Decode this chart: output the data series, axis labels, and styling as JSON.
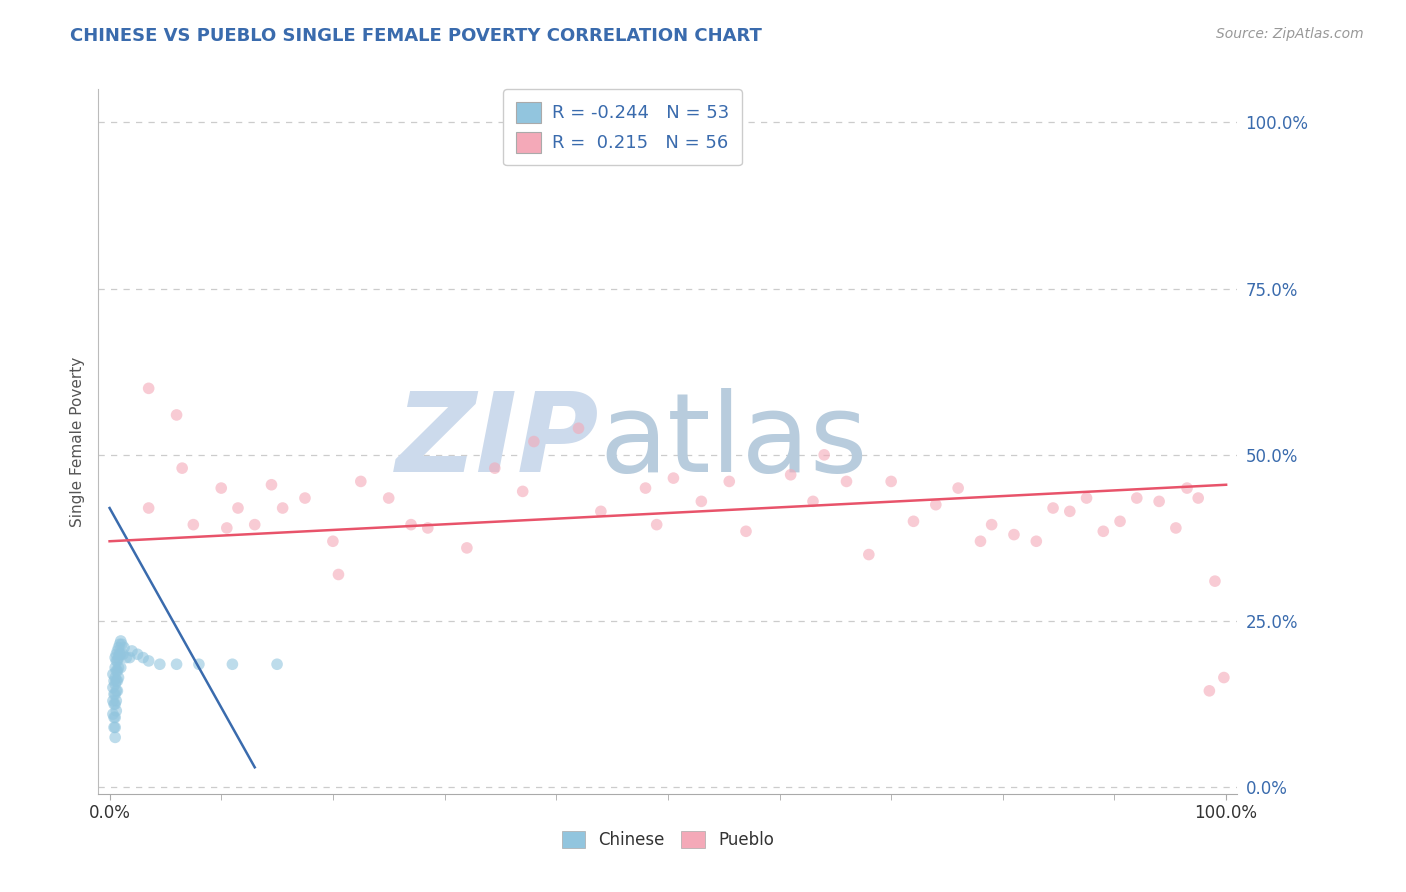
{
  "title": "CHINESE VS PUEBLO SINGLE FEMALE POVERTY CORRELATION CHART",
  "source": "Source: ZipAtlas.com",
  "ylabel": "Single Female Poverty",
  "ytick_labels": [
    "0.0%",
    "25.0%",
    "50.0%",
    "75.0%",
    "100.0%"
  ],
  "ytick_values": [
    0,
    0.25,
    0.5,
    0.75,
    1.0
  ],
  "xtick_labels": [
    "0.0%",
    "100.0%"
  ],
  "xtick_values": [
    0.0,
    1.0
  ],
  "xlim": [
    -0.01,
    1.01
  ],
  "ylim": [
    -0.01,
    1.05
  ],
  "blue_color": "#92C5DE",
  "pink_color": "#F4A9B8",
  "blue_fill_color": "#ADD8E6",
  "pink_fill_color": "#FFB6C1",
  "blue_line_color": "#3A6BAD",
  "pink_line_color": "#E8536A",
  "title_color": "#3A6BAD",
  "source_color": "#999999",
  "grid_color": "#CCCCCC",
  "watermark_color_zip": "#BBCCDD",
  "watermark_color_atlas": "#AABBCC",
  "r1_text": "R = -0.244",
  "n1_text": "N = 53",
  "r2_text": "R =  0.215",
  "n2_text": "N = 56",
  "chinese_x": [
    0.003,
    0.003,
    0.003,
    0.003,
    0.004,
    0.004,
    0.004,
    0.004,
    0.004,
    0.005,
    0.005,
    0.005,
    0.005,
    0.005,
    0.005,
    0.005,
    0.005,
    0.005,
    0.006,
    0.006,
    0.006,
    0.006,
    0.006,
    0.006,
    0.006,
    0.007,
    0.007,
    0.007,
    0.007,
    0.007,
    0.008,
    0.008,
    0.008,
    0.008,
    0.009,
    0.009,
    0.01,
    0.01,
    0.01,
    0.011,
    0.012,
    0.013,
    0.015,
    0.018,
    0.02,
    0.025,
    0.03,
    0.035,
    0.045,
    0.06,
    0.08,
    0.11,
    0.15
  ],
  "chinese_y": [
    0.17,
    0.15,
    0.13,
    0.11,
    0.16,
    0.14,
    0.125,
    0.105,
    0.09,
    0.195,
    0.18,
    0.165,
    0.155,
    0.14,
    0.125,
    0.105,
    0.09,
    0.075,
    0.2,
    0.19,
    0.175,
    0.16,
    0.145,
    0.13,
    0.115,
    0.205,
    0.19,
    0.175,
    0.16,
    0.145,
    0.21,
    0.195,
    0.18,
    0.165,
    0.215,
    0.2,
    0.22,
    0.2,
    0.18,
    0.215,
    0.2,
    0.21,
    0.195,
    0.195,
    0.205,
    0.2,
    0.195,
    0.19,
    0.185,
    0.185,
    0.185,
    0.185,
    0.185
  ],
  "pueblo_x": [
    0.035,
    0.06,
    0.035,
    0.065,
    0.075,
    0.1,
    0.105,
    0.115,
    0.13,
    0.145,
    0.155,
    0.175,
    0.2,
    0.205,
    0.225,
    0.25,
    0.27,
    0.285,
    0.32,
    0.345,
    0.37,
    0.38,
    0.42,
    0.44,
    0.48,
    0.49,
    0.505,
    0.53,
    0.555,
    0.57,
    0.61,
    0.63,
    0.64,
    0.66,
    0.68,
    0.7,
    0.72,
    0.74,
    0.76,
    0.78,
    0.79,
    0.81,
    0.83,
    0.845,
    0.86,
    0.875,
    0.89,
    0.905,
    0.92,
    0.94,
    0.955,
    0.965,
    0.975,
    0.985,
    0.99,
    0.998
  ],
  "pueblo_y": [
    0.6,
    0.56,
    0.42,
    0.48,
    0.395,
    0.45,
    0.39,
    0.42,
    0.395,
    0.455,
    0.42,
    0.435,
    0.37,
    0.32,
    0.46,
    0.435,
    0.395,
    0.39,
    0.36,
    0.48,
    0.445,
    0.52,
    0.54,
    0.415,
    0.45,
    0.395,
    0.465,
    0.43,
    0.46,
    0.385,
    0.47,
    0.43,
    0.5,
    0.46,
    0.35,
    0.46,
    0.4,
    0.425,
    0.45,
    0.37,
    0.395,
    0.38,
    0.37,
    0.42,
    0.415,
    0.435,
    0.385,
    0.4,
    0.435,
    0.43,
    0.39,
    0.45,
    0.435,
    0.145,
    0.31,
    0.165
  ],
  "blue_line_x0": 0.0,
  "blue_line_x1": 0.13,
  "blue_line_y0": 0.42,
  "blue_line_y1": 0.03,
  "pink_line_x0": 0.0,
  "pink_line_x1": 1.0,
  "pink_line_y0": 0.37,
  "pink_line_y1": 0.455,
  "marker_size": 70,
  "marker_alpha": 0.6,
  "line_width": 1.8
}
